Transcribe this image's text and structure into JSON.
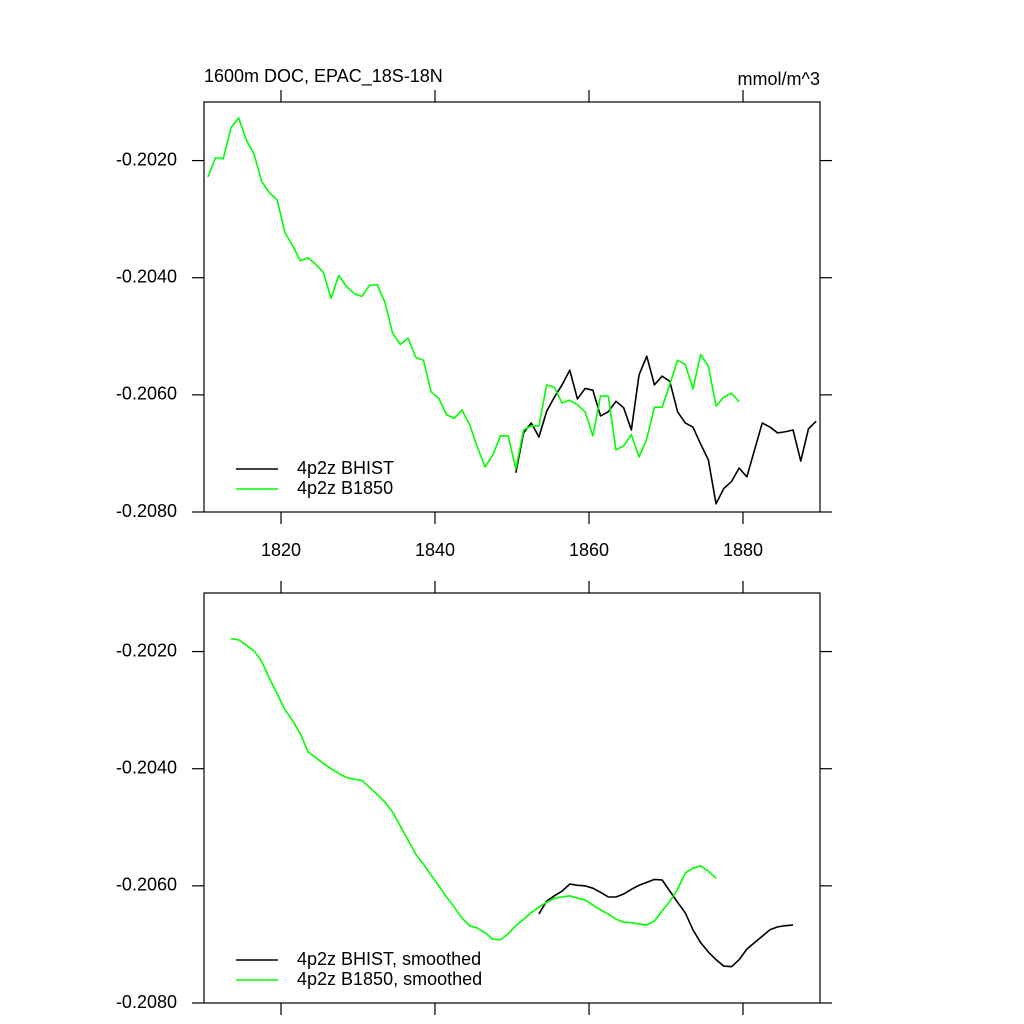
{
  "chart_data": [
    {
      "type": "line",
      "title": "1600m DOC, EPAC_18S-18N",
      "right_title": "mmol/m^3",
      "xlim": [
        1810,
        1890
      ],
      "xticks": [
        1820,
        1840,
        1860,
        1880
      ],
      "xtick_labels": true,
      "ylim": [
        -0.201,
        -0.208
      ],
      "yticks": [
        {
          "value": -0.202,
          "label": "-0.2020"
        },
        {
          "value": -0.204,
          "label": "-0.2040"
        },
        {
          "value": -0.206,
          "label": "-0.2060"
        },
        {
          "value": -0.208,
          "label": "-0.2080"
        }
      ],
      "legend": "lower left",
      "series": [
        {
          "name": "4p2z BHIST",
          "color": "#000000",
          "x": [
            1850.5,
            1851.5,
            1852.5,
            1853.5,
            1854.5,
            1855.5,
            1856.5,
            1857.5,
            1858.5,
            1859.5,
            1860.5,
            1861.5,
            1862.5,
            1863.5,
            1864.5,
            1865.5,
            1866.5,
            1867.5,
            1868.5,
            1869.5,
            1870.5,
            1871.5,
            1872.5,
            1873.5,
            1874.5,
            1875.5,
            1876.5,
            1877.5,
            1878.5,
            1879.5,
            1880.5,
            1881.5,
            1882.5,
            1883.5,
            1884.5,
            1885.5,
            1886.5,
            1887.5,
            1888.5,
            1889.5
          ],
          "values": [
            -0.20733,
            -0.20665,
            -0.20648,
            -0.20672,
            -0.20628,
            -0.20604,
            -0.20583,
            -0.20558,
            -0.20607,
            -0.20589,
            -0.20592,
            -0.20636,
            -0.20629,
            -0.20611,
            -0.20622,
            -0.2066,
            -0.20566,
            -0.20534,
            -0.20583,
            -0.20568,
            -0.20577,
            -0.20629,
            -0.20648,
            -0.20655,
            -0.20684,
            -0.20711,
            -0.20786,
            -0.2076,
            -0.20748,
            -0.20725,
            -0.2074,
            -0.20694,
            -0.20648,
            -0.20655,
            -0.20665,
            -0.20663,
            -0.2066,
            -0.20713,
            -0.20658,
            -0.20645
          ]
        },
        {
          "name": "4p2z B1850",
          "color": "#00ff00",
          "x": [
            1810.5,
            1811.5,
            1812.5,
            1813.5,
            1814.5,
            1815.5,
            1816.5,
            1817.5,
            1818.5,
            1819.5,
            1820.5,
            1821.5,
            1822.5,
            1823.5,
            1824.5,
            1825.5,
            1826.5,
            1827.5,
            1828.5,
            1829.5,
            1830.5,
            1831.5,
            1832.5,
            1833.5,
            1834.5,
            1835.5,
            1836.5,
            1837.5,
            1838.5,
            1839.5,
            1840.5,
            1841.5,
            1842.5,
            1843.5,
            1844.5,
            1845.5,
            1846.5,
            1847.5,
            1848.5,
            1849.5,
            1850.5,
            1851.5,
            1852.5,
            1853.5,
            1854.5,
            1855.5,
            1856.5,
            1857.5,
            1858.5,
            1859.5,
            1860.5,
            1861.5,
            1862.5,
            1863.5,
            1864.5,
            1865.5,
            1866.5,
            1867.5,
            1868.5,
            1869.5,
            1870.5,
            1871.5,
            1872.5,
            1873.5,
            1874.5,
            1875.5,
            1876.5,
            1877.5,
            1878.5,
            1879.5
          ],
          "values": [
            -0.20228,
            -0.20195,
            -0.20197,
            -0.20144,
            -0.20127,
            -0.20165,
            -0.20189,
            -0.20236,
            -0.20255,
            -0.20267,
            -0.20323,
            -0.20345,
            -0.20371,
            -0.20366,
            -0.20377,
            -0.20391,
            -0.20435,
            -0.20396,
            -0.20415,
            -0.20427,
            -0.20432,
            -0.20413,
            -0.20412,
            -0.20442,
            -0.20495,
            -0.20514,
            -0.20503,
            -0.20536,
            -0.20541,
            -0.20595,
            -0.20606,
            -0.20634,
            -0.2064,
            -0.20626,
            -0.20651,
            -0.20689,
            -0.20723,
            -0.20703,
            -0.2067,
            -0.2067,
            -0.20726,
            -0.2066,
            -0.20653,
            -0.20653,
            -0.20583,
            -0.20587,
            -0.20614,
            -0.20609,
            -0.20617,
            -0.20629,
            -0.2067,
            -0.20602,
            -0.20602,
            -0.20694,
            -0.20687,
            -0.20668,
            -0.20706,
            -0.20675,
            -0.20621,
            -0.20621,
            -0.20582,
            -0.20541,
            -0.20548,
            -0.2059,
            -0.20531,
            -0.20551,
            -0.20619,
            -0.20604,
            -0.20597,
            -0.20612
          ]
        }
      ]
    },
    {
      "type": "line",
      "xlim": [
        1810,
        1890
      ],
      "xticks": [
        1820,
        1840,
        1860,
        1880
      ],
      "xtick_labels": false,
      "ylim": [
        -0.201,
        -0.208
      ],
      "yticks": [
        {
          "value": -0.202,
          "label": "-0.2020"
        },
        {
          "value": -0.204,
          "label": "-0.2040"
        },
        {
          "value": -0.206,
          "label": "-0.2060"
        },
        {
          "value": -0.208,
          "label": "-0.2080"
        }
      ],
      "legend": "lower left",
      "series": [
        {
          "name": "4p2z BHIST, smoothed",
          "color": "#000000",
          "x": [
            1853.5,
            1854.5,
            1855.5,
            1856.5,
            1857.5,
            1858.5,
            1859.5,
            1860.5,
            1861.5,
            1862.5,
            1863.5,
            1864.5,
            1865.5,
            1866.5,
            1867.5,
            1868.5,
            1869.5,
            1870.5,
            1871.5,
            1872.5,
            1873.5,
            1874.5,
            1875.5,
            1876.5,
            1877.5,
            1878.5,
            1879.5,
            1880.5,
            1881.5,
            1882.5,
            1883.5,
            1884.5,
            1885.5,
            1886.5
          ],
          "values": [
            -0.20648,
            -0.20626,
            -0.20617,
            -0.20609,
            -0.20597,
            -0.20599,
            -0.206,
            -0.20604,
            -0.20611,
            -0.20619,
            -0.20619,
            -0.20614,
            -0.20606,
            -0.20599,
            -0.20594,
            -0.20589,
            -0.2059,
            -0.20609,
            -0.20628,
            -0.20646,
            -0.20675,
            -0.20697,
            -0.20713,
            -0.20726,
            -0.20737,
            -0.20738,
            -0.20726,
            -0.20708,
            -0.20697,
            -0.20686,
            -0.20675,
            -0.2067,
            -0.20668,
            -0.20667
          ]
        },
        {
          "name": "4p2z B1850, smoothed",
          "color": "#00ff00",
          "x": [
            1813.5,
            1814.5,
            1815.5,
            1816.5,
            1817.5,
            1818.5,
            1819.5,
            1820.5,
            1821.5,
            1822.5,
            1823.5,
            1824.5,
            1825.5,
            1826.5,
            1827.5,
            1828.5,
            1829.5,
            1830.5,
            1831.5,
            1832.5,
            1833.5,
            1834.5,
            1835.5,
            1836.5,
            1837.5,
            1838.5,
            1839.5,
            1840.5,
            1841.5,
            1842.5,
            1843.5,
            1844.5,
            1845.5,
            1846.5,
            1847.5,
            1848.5,
            1849.5,
            1850.5,
            1851.5,
            1852.5,
            1853.5,
            1854.5,
            1855.5,
            1856.5,
            1857.5,
            1858.5,
            1859.5,
            1860.5,
            1861.5,
            1862.5,
            1863.5,
            1864.5,
            1865.5,
            1866.5,
            1867.5,
            1868.5,
            1869.5,
            1870.5,
            1871.5,
            1872.5,
            1873.5,
            1874.5,
            1875.5,
            1876.5
          ],
          "values": [
            -0.20178,
            -0.2018,
            -0.20189,
            -0.20199,
            -0.20217,
            -0.20246,
            -0.20272,
            -0.20299,
            -0.20318,
            -0.2034,
            -0.20371,
            -0.20381,
            -0.20391,
            -0.204,
            -0.20408,
            -0.20415,
            -0.20418,
            -0.2042,
            -0.20432,
            -0.20444,
            -0.20457,
            -0.20474,
            -0.20498,
            -0.20522,
            -0.20546,
            -0.20563,
            -0.20582,
            -0.206,
            -0.20619,
            -0.20636,
            -0.20655,
            -0.20668,
            -0.20672,
            -0.2068,
            -0.20691,
            -0.20692,
            -0.20682,
            -0.20668,
            -0.20657,
            -0.20646,
            -0.20636,
            -0.20628,
            -0.20621,
            -0.20619,
            -0.20617,
            -0.20621,
            -0.20624,
            -0.20633,
            -0.20641,
            -0.20648,
            -0.20657,
            -0.20662,
            -0.20663,
            -0.20665,
            -0.20667,
            -0.2066,
            -0.20643,
            -0.20626,
            -0.20606,
            -0.20578,
            -0.2057,
            -0.20566,
            -0.20575,
            -0.20587
          ]
        }
      ]
    }
  ]
}
